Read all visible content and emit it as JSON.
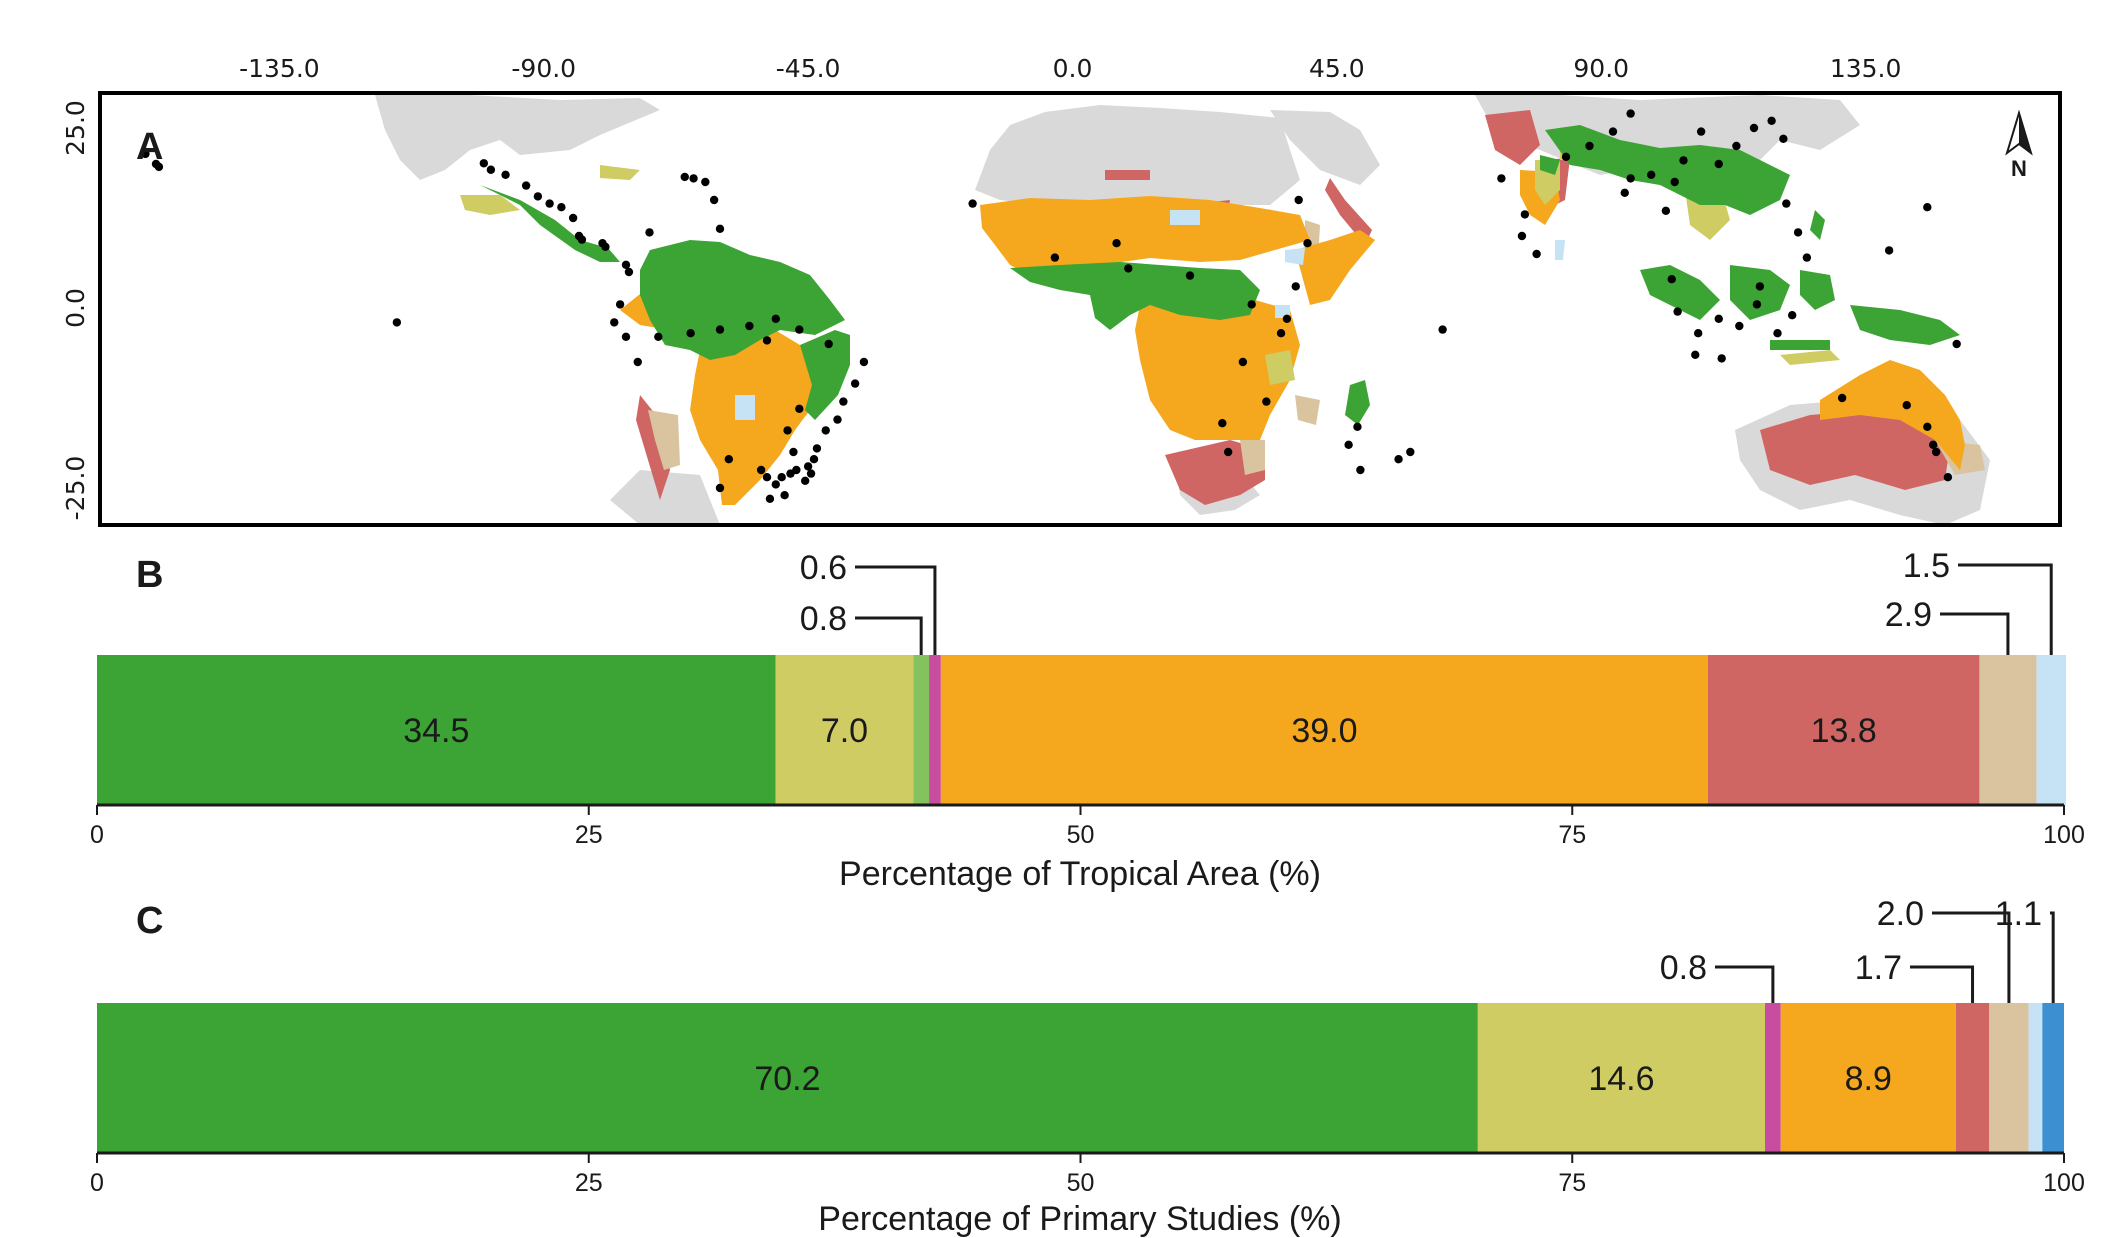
{
  "panel_labels": {
    "a": "A",
    "b": "B",
    "c": "C"
  },
  "north_arrow": {
    "label": "N",
    "icon": "north-arrow-icon"
  },
  "chart_data": [
    {
      "type": "map",
      "panel": "A",
      "x_ticks": [
        "-135.0",
        "-90.0",
        "-45.0",
        "0.0",
        "45.0",
        "90.0",
        "135.0"
      ],
      "y_ticks": [
        "25.0",
        "0.0",
        "-25.0"
      ],
      "colors": {
        "land": "#d9d9d9",
        "green": "#3ca335",
        "olive": "#cfcc63",
        "orange": "#f5a81e",
        "red": "#d06664",
        "tan": "#d9c49f",
        "light_blue": "#c6e2f5",
        "magenta": "#c84d9e",
        "points": "#000000"
      },
      "study_points_lonlat": [
        [
          -155.5,
          19.6
        ],
        [
          -156.0,
          20.0
        ],
        [
          -157.8,
          21.4
        ],
        [
          -100.2,
          20.1
        ],
        [
          -99.0,
          19.2
        ],
        [
          -96.5,
          18.5
        ],
        [
          -93.0,
          17.0
        ],
        [
          -91.0,
          15.5
        ],
        [
          -89.0,
          14.5
        ],
        [
          -87.0,
          14.0
        ],
        [
          -85.0,
          12.5
        ],
        [
          -84.0,
          10.0
        ],
        [
          -83.5,
          9.5
        ],
        [
          -80.0,
          9.0
        ],
        [
          -79.5,
          8.5
        ],
        [
          -76.0,
          6.0
        ],
        [
          -75.5,
          5.0
        ],
        [
          -72.0,
          10.5
        ],
        [
          -66.0,
          18.2
        ],
        [
          -64.5,
          18.0
        ],
        [
          -62.5,
          17.5
        ],
        [
          -61.0,
          15.0
        ],
        [
          -60.0,
          11.0
        ],
        [
          -77.0,
          0.5
        ],
        [
          -78.0,
          -2.0
        ],
        [
          -76.0,
          -4.0
        ],
        [
          -74.0,
          -7.5
        ],
        [
          -70.5,
          -4.0
        ],
        [
          -65.0,
          -3.5
        ],
        [
          -60.0,
          -3.0
        ],
        [
          -55.0,
          -2.5
        ],
        [
          -52.0,
          -4.5
        ],
        [
          -50.5,
          -1.5
        ],
        [
          -46.5,
          -3.0
        ],
        [
          -41.5,
          -5.0
        ],
        [
          -35.5,
          -7.5
        ],
        [
          -37.0,
          -10.5
        ],
        [
          -39.0,
          -13.0
        ],
        [
          -40.0,
          -15.5
        ],
        [
          -42.0,
          -17.0
        ],
        [
          -43.5,
          -19.5
        ],
        [
          -44.0,
          -21.0
        ],
        [
          -45.0,
          -22.0
        ],
        [
          -47.0,
          -22.5
        ],
        [
          -48.0,
          -23.0
        ],
        [
          -49.5,
          -23.5
        ],
        [
          -50.5,
          -24.5
        ],
        [
          -52.0,
          -23.5
        ],
        [
          -53.0,
          -22.5
        ],
        [
          -47.5,
          -20.0
        ],
        [
          -48.5,
          -17.0
        ],
        [
          -46.5,
          -14.0
        ],
        [
          -51.5,
          -26.5
        ],
        [
          -49.0,
          -26.0
        ],
        [
          -44.5,
          -23.0
        ],
        [
          -45.5,
          -24.0
        ],
        [
          -58.5,
          -21.0
        ],
        [
          -60.0,
          -25.0
        ],
        [
          -115.0,
          -2.0
        ],
        [
          -17.0,
          14.5
        ],
        [
          -3.0,
          7.0
        ],
        [
          7.5,
          9.0
        ],
        [
          9.5,
          5.5
        ],
        [
          20.0,
          4.5
        ],
        [
          30.5,
          0.5
        ],
        [
          36.5,
          -1.5
        ],
        [
          38.0,
          3.0
        ],
        [
          40.0,
          9.0
        ],
        [
          38.5,
          15.0
        ],
        [
          29.0,
          -7.5
        ],
        [
          25.5,
          -16.0
        ],
        [
          26.5,
          -20.0
        ],
        [
          35.5,
          -3.5
        ],
        [
          33.0,
          -13.0
        ],
        [
          47.0,
          -19.0
        ],
        [
          48.5,
          -16.5
        ],
        [
          49.0,
          -22.5
        ],
        [
          57.5,
          -20.0
        ],
        [
          63.0,
          -3.0
        ],
        [
          55.5,
          -21.0
        ],
        [
          77.0,
          13.0
        ],
        [
          76.5,
          10.0
        ],
        [
          79.0,
          7.5
        ],
        [
          73.0,
          18.0
        ],
        [
          84.0,
          21.0
        ],
        [
          88.0,
          22.5
        ],
        [
          92.0,
          24.5
        ],
        [
          95.0,
          27.0
        ],
        [
          98.5,
          18.5
        ],
        [
          101.0,
          13.5
        ],
        [
          102.5,
          17.5
        ],
        [
          104.0,
          20.5
        ],
        [
          107.0,
          24.5
        ],
        [
          110.0,
          20.0
        ],
        [
          113.0,
          22.5
        ],
        [
          116.0,
          25.0
        ],
        [
          119.0,
          26.0
        ],
        [
          121.0,
          23.5
        ],
        [
          121.5,
          14.5
        ],
        [
          123.5,
          10.5
        ],
        [
          125.0,
          7.0
        ],
        [
          102.0,
          4.0
        ],
        [
          103.0,
          -0.5
        ],
        [
          106.5,
          -3.5
        ],
        [
          110.0,
          -1.5
        ],
        [
          113.5,
          -2.5
        ],
        [
          116.5,
          0.5
        ],
        [
          117.0,
          3.0
        ],
        [
          120.0,
          -3.5
        ],
        [
          122.5,
          -1.0
        ],
        [
          106.0,
          -6.5
        ],
        [
          110.5,
          -7.0
        ],
        [
          139.0,
          8.0
        ],
        [
          145.5,
          14.0
        ],
        [
          150.5,
          -5.0
        ],
        [
          145.5,
          -16.5
        ],
        [
          146.5,
          -19.0
        ],
        [
          147.0,
          -20.0
        ],
        [
          149.0,
          -23.5
        ],
        [
          131.0,
          -12.5
        ],
        [
          142.0,
          -13.5
        ],
        [
          178.0,
          -17.5
        ],
        [
          175.0,
          -18.0
        ],
        [
          95.0,
          18.0
        ],
        [
          94.0,
          16.0
        ]
      ]
    },
    {
      "type": "bar",
      "orientation": "horizontal-stacked",
      "panel": "B",
      "xlabel": "Percentage of Tropical Area (%)",
      "xlim": [
        0,
        100
      ],
      "x_ticks": [
        0,
        25,
        50,
        75,
        100
      ],
      "segments": [
        {
          "value": 34.5,
          "color": "#3ca335",
          "label": "34.5"
        },
        {
          "value": 7.0,
          "color": "#cfcc63",
          "label": "7.0"
        },
        {
          "value": 0.8,
          "color": "#84c25f",
          "label": "0.8",
          "callout": true
        },
        {
          "value": 0.6,
          "color": "#c84d9e",
          "label": "0.6",
          "callout": true
        },
        {
          "value": 39.0,
          "color": "#f5a81e",
          "label": "39.0"
        },
        {
          "value": 13.8,
          "color": "#d06664",
          "label": "13.8"
        },
        {
          "value": 2.9,
          "color": "#d9c49f",
          "label": "2.9",
          "callout": true
        },
        {
          "value": 1.5,
          "color": "#c6e2f5",
          "label": "1.5",
          "callout": true
        }
      ]
    },
    {
      "type": "bar",
      "orientation": "horizontal-stacked",
      "panel": "C",
      "xlabel": "Percentage of Primary Studies (%)",
      "xlim": [
        0,
        100
      ],
      "x_ticks": [
        0,
        25,
        50,
        75,
        100
      ],
      "segments": [
        {
          "value": 70.2,
          "color": "#3ca335",
          "label": "70.2"
        },
        {
          "value": 14.6,
          "color": "#cfcc63",
          "label": "14.6"
        },
        {
          "value": 0.8,
          "color": "#c84d9e",
          "label": "0.8",
          "callout": true
        },
        {
          "value": 8.9,
          "color": "#f5a81e",
          "label": "8.9"
        },
        {
          "value": 1.7,
          "color": "#d06664",
          "label": "1.7",
          "callout": true
        },
        {
          "value": 2.0,
          "color": "#d9c49f",
          "label": "2.0",
          "callout": true
        },
        {
          "value": 0.7,
          "color": "#c6e2f5"
        },
        {
          "value": 1.1,
          "color": "#3c8fd0",
          "label": "1.1",
          "callout": true
        }
      ]
    }
  ]
}
